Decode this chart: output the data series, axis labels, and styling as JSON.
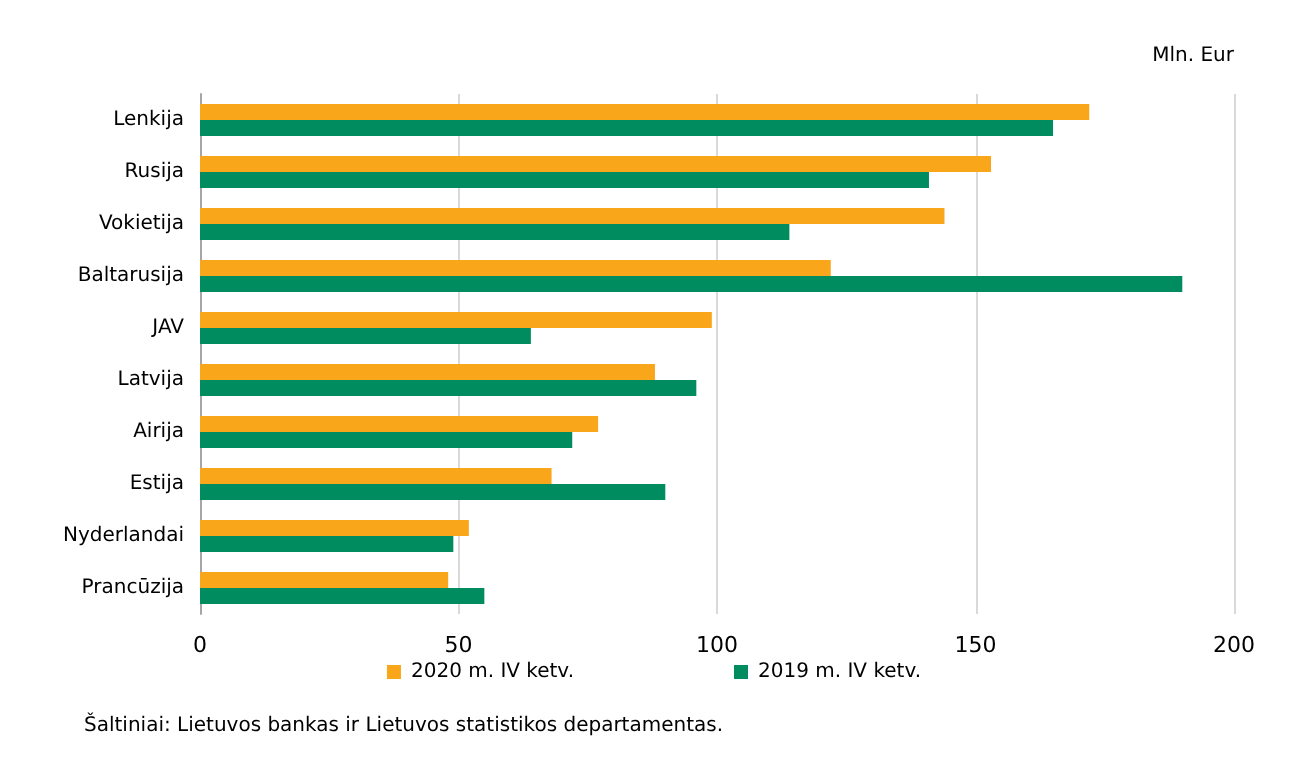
{
  "chart_data": {
    "type": "bar",
    "orientation": "horizontal",
    "xlabel": "Mln. Eur",
    "categories": [
      "Lenkija",
      "Rusija",
      "Vokietija",
      "Baltarusija",
      "JAV",
      "Latvija",
      "Airija",
      "Estija",
      "Nyderlandai",
      "Prancūzija"
    ],
    "series": [
      {
        "name": "2020 m. IV ketv.",
        "color": "#f9a61a",
        "values": [
          172,
          153,
          144,
          122,
          99,
          88,
          77,
          68,
          52,
          48
        ]
      },
      {
        "name": "2019 m. IV ketv.",
        "color": "#008c5f",
        "values": [
          165,
          141,
          114,
          190,
          64,
          96,
          72,
          90,
          49,
          55
        ]
      }
    ],
    "xlim": [
      0,
      200
    ],
    "xticks": [
      0,
      50,
      100,
      150,
      200
    ],
    "grid": "x",
    "legend": "bottom",
    "annotations": [
      "Šaltiniai: Lietuvos bankas ir Lietuvos statistikos departamentas."
    ]
  }
}
